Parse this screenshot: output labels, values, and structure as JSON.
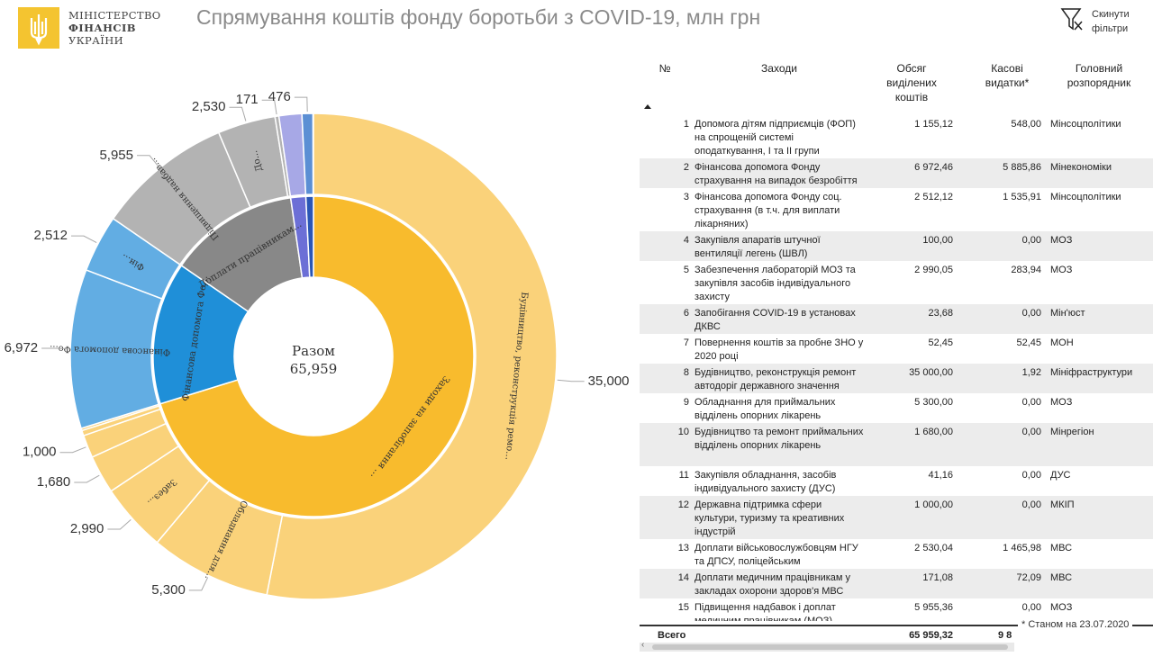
{
  "header": {
    "logo_line1": "МІНІСТЕРСТВО",
    "logo_line2": "ФІНАНСІВ",
    "logo_line3": "УКРАЇНИ",
    "title": "Спрямування коштів фонду боротьби з COVID-19, млн грн",
    "reset_label": "Скинути фільтри"
  },
  "table": {
    "headers": {
      "no": "№",
      "measure": "Заходи",
      "allocated": "Обсяг виділених коштів",
      "cash": "Касові видатки*",
      "manager": "Головний розпорядник"
    },
    "rows": [
      {
        "no": "1",
        "measure": "Допомога дітям підприємців (ФОП) на спрощеній системі оподаткування, І та ІІ групи",
        "allocated": "1 155,12",
        "cash": "548,00",
        "manager": "Мінсоцполітики"
      },
      {
        "no": "2",
        "measure": "Фінансова допомога Фонду страхування на випадок безробіття",
        "allocated": "6 972,46",
        "cash": "5 885,86",
        "manager": "Мінекономіки"
      },
      {
        "no": "3",
        "measure": "Фінансова допомога Фонду соц. страхування (в т.ч. для виплати лікарняних)",
        "allocated": "2 512,12",
        "cash": "1 535,91",
        "manager": "Мінсоцполітики"
      },
      {
        "no": "4",
        "measure": "Закупівля апаратів штучної вентиляції легень (ШВЛ)",
        "allocated": "100,00",
        "cash": "0,00",
        "manager": "МОЗ"
      },
      {
        "no": "5",
        "measure": "Забезпечення лабораторій МОЗ та закупівля засобів індивідуального захисту",
        "allocated": "2 990,05",
        "cash": "283,94",
        "manager": "МОЗ"
      },
      {
        "no": "6",
        "measure": "Запобігання COVID-19 в установах ДКВС",
        "allocated": "23,68",
        "cash": "0,00",
        "manager": "Мін'юст"
      },
      {
        "no": "7",
        "measure": "Повернення коштів за пробне ЗНО у 2020 році",
        "allocated": "52,45",
        "cash": "52,45",
        "manager": "МОН"
      },
      {
        "no": "8",
        "measure": "Будівництво, реконструкція ремонт автодоріг державного значення",
        "allocated": "35 000,00",
        "cash": "1,92",
        "manager": "Мініфраструктури"
      },
      {
        "no": "9",
        "measure": "Обладнання для приймальних відділень опорних лікарень",
        "allocated": "5 300,00",
        "cash": "0,00",
        "manager": "МОЗ"
      },
      {
        "no": "10",
        "measure": "Будівництво та ремонт приймальних відділень опорних лікарень",
        "allocated": "1 680,00",
        "cash": "0,00",
        "manager": "Мінрегіон"
      },
      {
        "no": "11",
        "measure": "Закупівля обладнання, засобів індивідуального захисту (ДУС)",
        "allocated": "41,16",
        "cash": "0,00",
        "manager": "ДУС"
      },
      {
        "no": "12",
        "measure": "Державна підтримка сфери культури, туризму та креативних індустрій",
        "allocated": "1 000,00",
        "cash": "0,00",
        "manager": "МКІП"
      },
      {
        "no": "13",
        "measure": "Доплати військовослужбовцям НГУ та ДПСУ, поліцейським",
        "allocated": "2 530,04",
        "cash": "1 465,98",
        "manager": "МВС"
      },
      {
        "no": "14",
        "measure": "Доплати медичним працівникам у закладах охорони здоров'я МВС",
        "allocated": "171,08",
        "cash": "72,09",
        "manager": "МВС"
      },
      {
        "no": "15",
        "measure": "Підвищення надбавок і доплат медичним працівникам (МОЗ)",
        "allocated": "5 955,36",
        "cash": "0,00",
        "manager": "МОЗ"
      }
    ],
    "total_label": "Всего",
    "total_allocated": "65 959,32",
    "total_cash": "9 8"
  },
  "footnote": "* Станом на 23.07.2020",
  "colors": {
    "yellow_light": "#fad27a",
    "yellow_dark": "#f8bb2d",
    "blue_light": "#62ade3",
    "blue_dark": "#1f8fd8",
    "gray_light": "#b3b3b3",
    "gray_dark": "#888888",
    "purple_light": "#a7a8e6",
    "purple_dark": "#6c6fd6",
    "steel_light": "#5b8fd4",
    "steel_dark": "#2a56b5"
  },
  "chart_data": {
    "type": "sunburst",
    "center_label": "Разом",
    "center_value": "65,959",
    "inner": [
      {
        "name": "Заходи на запобігання спалаху COVID-19",
        "value": 46300,
        "label": "Заходи на запобігання спалаху COVID-19",
        "color": "yellow_dark"
      },
      {
        "name": "Фінансова допомога Фонду...",
        "value": 9485,
        "label": "Фінансова допомога Фонду...",
        "color": "blue_dark"
      },
      {
        "name": "Доплати працівникам...",
        "value": 8656,
        "label": "Доплати працівникам...",
        "color": "gray_dark"
      },
      {
        "name": "",
        "value": 1000,
        "label": "",
        "color": "purple_dark"
      },
      {
        "name": "",
        "value": 500,
        "label": "",
        "color": "steel_dark"
      }
    ],
    "outer": [
      {
        "value": 35000,
        "parent": 0,
        "label": "Будівництво, реконструкція ремонт автодоріг державного значення",
        "outer_label": "35,000"
      },
      {
        "value": 5300,
        "parent": 0,
        "label": "Обладнання для...",
        "outer_label": "5,300"
      },
      {
        "value": 2990,
        "parent": 0,
        "label": "Забез...",
        "outer_label": "2,990"
      },
      {
        "value": 1680,
        "parent": 0,
        "label": "",
        "outer_label": "1,680"
      },
      {
        "value": 1000,
        "parent": 0,
        "label": "",
        "outer_label": "1,000"
      },
      {
        "value": 230,
        "parent": 0,
        "label": "",
        "outer_label": ""
      },
      {
        "value": 100,
        "parent": 0,
        "label": "",
        "outer_label": ""
      },
      {
        "value": 6972,
        "parent": 1,
        "label": "Фінансова допомога Фо...",
        "outer_label": "6,972"
      },
      {
        "value": 2512,
        "parent": 1,
        "label": "Фін...",
        "outer_label": "2,512"
      },
      {
        "value": 5955,
        "parent": 2,
        "label": "Підвищення надбав...",
        "outer_label": "5,955"
      },
      {
        "value": 2530,
        "parent": 2,
        "label": "До...",
        "outer_label": "2,530"
      },
      {
        "value": 171,
        "parent": 2,
        "label": "",
        "outer_label": "171"
      },
      {
        "value": 1000,
        "parent": 3,
        "label": "",
        "outer_label": ""
      },
      {
        "value": 476,
        "parent": 4,
        "label": "",
        "outer_label": "476"
      }
    ]
  }
}
